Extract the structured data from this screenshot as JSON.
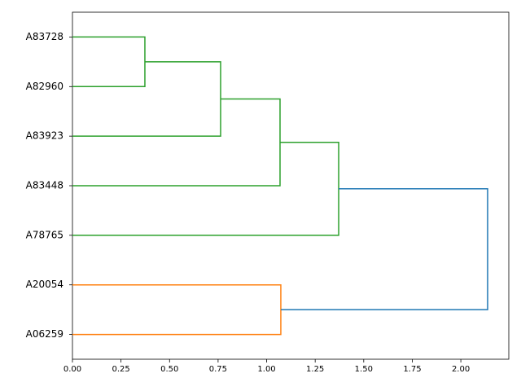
{
  "chart_data": {
    "type": "dendrogram",
    "orientation": "left",
    "labels": [
      "A83728",
      "A82960",
      "A83923",
      "A83448",
      "A78765",
      "A20054",
      "A06259"
    ],
    "links": [
      {
        "children": [
          0,
          1
        ],
        "distance": 0.373,
        "color": "#2ca02c"
      },
      {
        "children": [
          7,
          2
        ],
        "distance": 0.763,
        "color": "#2ca02c"
      },
      {
        "children": [
          8,
          3
        ],
        "distance": 1.069,
        "color": "#2ca02c"
      },
      {
        "children": [
          9,
          4
        ],
        "distance": 1.371,
        "color": "#2ca02c"
      },
      {
        "children": [
          5,
          6
        ],
        "distance": 1.073,
        "color": "#ff7f0e"
      },
      {
        "children": [
          10,
          11
        ],
        "distance": 2.138,
        "color": "#1f77b4"
      }
    ],
    "xlim": [
      0,
      2.247
    ],
    "xticks": [
      {
        "value": 0,
        "label": "0.00"
      },
      {
        "value": 0.25,
        "label": "0.25"
      },
      {
        "value": 0.5,
        "label": "0.50"
      },
      {
        "value": 0.75,
        "label": "0.75"
      },
      {
        "value": 1,
        "label": "1.00"
      },
      {
        "value": 1.25,
        "label": "1.25"
      },
      {
        "value": 1.5,
        "label": "1.50"
      },
      {
        "value": 1.75,
        "label": "1.75"
      },
      {
        "value": 2,
        "label": "2.00"
      }
    ]
  }
}
